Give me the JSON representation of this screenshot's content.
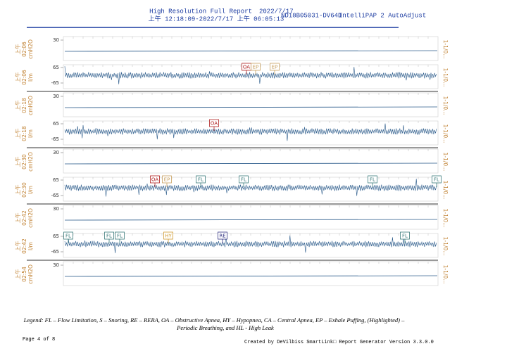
{
  "header": {
    "title": "High Resolution Full Report",
    "date": "2022/7/17",
    "range": "上午 12:18:09-2022/7/17 上午 06:05:13",
    "serial": "ND18B05031-DV64D",
    "device": "IntelliPAP 2 AutoAdjust"
  },
  "strips": [
    {
      "period": "上午",
      "time": "02:06",
      "unit": "cmH2O",
      "ticks": [
        30
      ],
      "side": "1-1/0...",
      "events": []
    },
    {
      "period": "上午",
      "time": "02:06",
      "unit": "l/m",
      "ticks": [
        65,
        -65
      ],
      "side": "1-1/0...",
      "events": [
        "OA",
        "EP",
        "EP"
      ]
    },
    {
      "period": "上午",
      "time": "02:18",
      "unit": "cmH2O",
      "ticks": [
        30
      ],
      "side": "1-1/0...",
      "events": []
    },
    {
      "period": "上午",
      "time": "02:18",
      "unit": "l/m",
      "ticks": [
        65,
        -65
      ],
      "side": "1-1/0...",
      "events": [
        "OA"
      ]
    },
    {
      "period": "上午",
      "time": "02:30",
      "unit": "cmH2O",
      "ticks": [
        30
      ],
      "side": "1-1/0...",
      "events": []
    },
    {
      "period": "上午",
      "time": "02:30",
      "unit": "l/m",
      "ticks": [
        65,
        -65
      ],
      "side": "1-1/0...",
      "events": [
        "OA",
        "EP",
        "FL",
        "FL",
        "FL",
        "FL"
      ]
    },
    {
      "period": "上午",
      "time": "02:42",
      "unit": "cmH2O",
      "ticks": [
        30
      ],
      "side": "1-1/0...",
      "events": []
    },
    {
      "period": "上午",
      "time": "02:42",
      "unit": "l/m",
      "ticks": [
        65,
        -65
      ],
      "side": "1-1/0...",
      "events": [
        "FL",
        "FL",
        "FL",
        "HY",
        "RE",
        "FL"
      ]
    },
    {
      "period": "上午",
      "time": "02:54",
      "unit": "cmH2O",
      "ticks": [
        30
      ],
      "side": "1-1/0...",
      "events": []
    }
  ],
  "legend": {
    "line1": "Legend: FL – Flow Limitation, S – Snoring, RE – RERA, OA – Obstructive Apnea, HY – Hypopnea, CA – Central Apnea, EP – Exhale Puffing,  (Highlighted) –",
    "line2": "Periodic Breathing, and HL - High Leak"
  },
  "footer": {
    "page": "Page 4 of 8",
    "credit": "Created by DeVilbiss SmartLink□ Report Generator Version 3.3.0.0"
  }
}
